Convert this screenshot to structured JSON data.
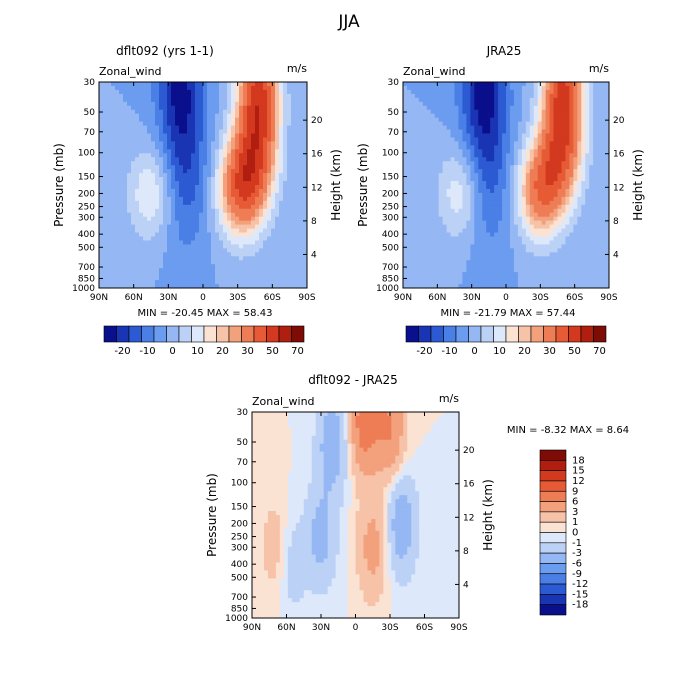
{
  "figure": {
    "title": "JJA"
  },
  "colors": {
    "fill_top": [
      "#0a0f8c",
      "#1a35b4",
      "#2c5ad2",
      "#4a7fe6",
      "#6b9cf0",
      "#95b7f3",
      "#bcd1f6",
      "#dde8fb",
      "#fbe3d4",
      "#f7c3a8",
      "#f3a07d",
      "#ee7d55",
      "#e65a35",
      "#d2391e",
      "#b01e10",
      "#7d0b06"
    ],
    "fill_diff": [
      "#0a0f8c",
      "#1a35b4",
      "#2c5ad2",
      "#4a7fe6",
      "#6b9cf0",
      "#95b7f3",
      "#bcd1f6",
      "#dde8fb",
      "#fbe3d4",
      "#f7c3a8",
      "#f3a07d",
      "#ee7d55",
      "#e65a35",
      "#d2391e",
      "#b01e10",
      "#7d0b06"
    ]
  },
  "panels": [
    {
      "title": "dflt092 (yrs 1-1)",
      "var_label": "Zonal_wind",
      "units": "m/s",
      "stats": "MIN = -20.45   MAX =  58.43"
    },
    {
      "title": "JRA25",
      "var_label": "Zonal_wind",
      "units": "m/s",
      "stats": "MIN = -21.79   MAX =  57.44"
    },
    {
      "title": "dflt092 - JRA25",
      "var_label": "Zonal_wind",
      "units": "m/s",
      "stats": "MIN =  -8.32   MAX =   8.64"
    }
  ],
  "chart_data": [
    {
      "type": "contour",
      "title": "dflt092 (yrs 1-1)",
      "xlabel": "",
      "ylabel": "Pressure (mb)",
      "y2label": "Height (km)",
      "x_ticks": [
        "90N",
        "60N",
        "30N",
        "0",
        "30S",
        "60S",
        "90S"
      ],
      "y_ticks": [
        "30",
        "50",
        "70",
        "100",
        "150",
        "200",
        "250",
        "300",
        "400",
        "500",
        "700",
        "850",
        "1000"
      ],
      "y2_ticks": [
        "20",
        "16",
        "12",
        "8",
        "4"
      ],
      "min": -20.45,
      "max": 58.43,
      "features": [
        {
          "kind": "jet",
          "lat": -48,
          "p": 40,
          "value": 55
        },
        {
          "kind": "jet",
          "lat": -33,
          "p": 200,
          "value": 35
        },
        {
          "kind": "jet",
          "lat": -42,
          "p": 120,
          "value": 30
        },
        {
          "kind": "easterly",
          "lat": 20,
          "p": 30,
          "value": -20
        },
        {
          "kind": "easterly",
          "lat": 15,
          "p": 150,
          "value": -12
        },
        {
          "kind": "jet",
          "lat": 45,
          "p": 200,
          "value": 15
        }
      ]
    },
    {
      "type": "contour",
      "title": "JRA25",
      "xlabel": "",
      "ylabel": "Pressure (mb)",
      "y2label": "Height (km)",
      "x_ticks": [
        "90N",
        "60N",
        "30N",
        "0",
        "30S",
        "60S",
        "90S"
      ],
      "y_ticks": [
        "30",
        "50",
        "70",
        "100",
        "150",
        "200",
        "250",
        "300",
        "400",
        "500",
        "700",
        "850",
        "1000"
      ],
      "y2_ticks": [
        "20",
        "16",
        "12",
        "8",
        "4"
      ],
      "min": -21.79,
      "max": 57.44,
      "features": [
        {
          "kind": "jet",
          "lat": -50,
          "p": 40,
          "value": 54
        },
        {
          "kind": "jet",
          "lat": -30,
          "p": 200,
          "value": 33
        },
        {
          "kind": "jet",
          "lat": -45,
          "p": 120,
          "value": 28
        },
        {
          "kind": "easterly",
          "lat": 20,
          "p": 30,
          "value": -21
        },
        {
          "kind": "easterly",
          "lat": 15,
          "p": 150,
          "value": -11
        },
        {
          "kind": "jet",
          "lat": 40,
          "p": 200,
          "value": 14
        }
      ]
    },
    {
      "type": "contour",
      "title": "dflt092 - JRA25",
      "xlabel": "",
      "ylabel": "Pressure (mb)",
      "y2label": "Height (km)",
      "x_ticks": [
        "90N",
        "60N",
        "30N",
        "0",
        "30S",
        "60S",
        "90S"
      ],
      "y_ticks": [
        "30",
        "50",
        "70",
        "100",
        "150",
        "200",
        "250",
        "300",
        "400",
        "500",
        "700",
        "850",
        "1000"
      ],
      "y2_ticks": [
        "20",
        "16",
        "12",
        "8",
        "4"
      ],
      "min": -8.32,
      "max": 8.64,
      "features": [
        {
          "kind": "pos",
          "lat": -8,
          "p": 35,
          "value": 8
        },
        {
          "kind": "pos",
          "lat": -30,
          "p": 40,
          "value": 6
        },
        {
          "kind": "neg",
          "lat": 20,
          "p": 50,
          "value": -5
        },
        {
          "kind": "neg",
          "lat": 30,
          "p": 250,
          "value": -4
        },
        {
          "kind": "pos",
          "lat": -15,
          "p": 300,
          "value": 4
        },
        {
          "kind": "neg",
          "lat": -40,
          "p": 200,
          "value": -5
        },
        {
          "kind": "pos",
          "lat": 70,
          "p": 300,
          "value": 2
        },
        {
          "kind": "neg",
          "lat": 55,
          "p": 400,
          "value": -2
        }
      ]
    }
  ],
  "colorbars": [
    {
      "orientation": "horizontal",
      "labels": [
        "-20",
        "-10",
        "0",
        "10",
        "20",
        "30",
        "50",
        "70"
      ]
    },
    {
      "orientation": "horizontal",
      "labels": [
        "-20",
        "-10",
        "0",
        "10",
        "20",
        "30",
        "50",
        "70"
      ]
    },
    {
      "orientation": "vertical",
      "labels": [
        "18",
        "15",
        "12",
        "9",
        "6",
        "3",
        "1",
        "0",
        "-1",
        "-3",
        "-6",
        "-9",
        "-12",
        "-15",
        "-18"
      ]
    }
  ]
}
